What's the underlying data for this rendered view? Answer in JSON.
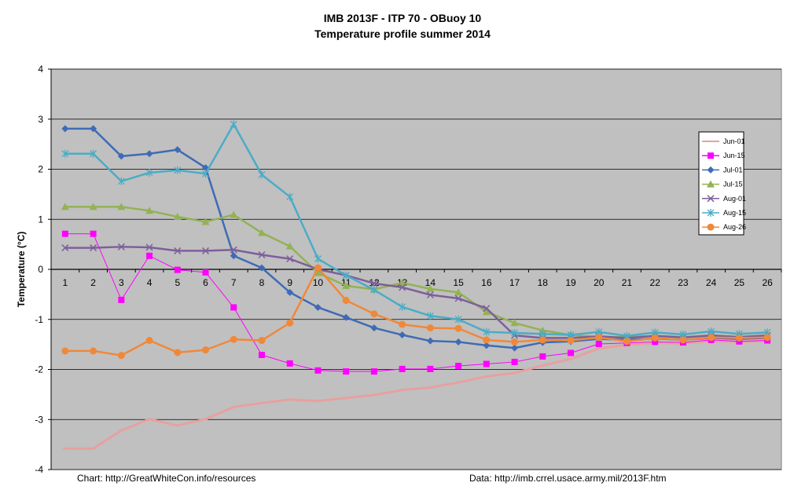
{
  "chart_data": {
    "type": "line",
    "title": "IMB 2013F  - ITP 70 - OBuoy 10",
    "subtitle": "Temperature profile summer 2014",
    "xlabel": "",
    "ylabel": "Temperature (°C)",
    "ylim": [
      -4,
      4
    ],
    "yticks": [
      -4,
      -3,
      -2,
      -1,
      0,
      1,
      2,
      3,
      4
    ],
    "x": [
      1,
      2,
      3,
      4,
      5,
      6,
      7,
      8,
      9,
      10,
      11,
      12,
      13,
      14,
      15,
      16,
      17,
      18,
      19,
      20,
      21,
      22,
      23,
      24,
      25,
      26
    ],
    "grid": "horizontal",
    "legend_position": "right",
    "series": [
      {
        "name": "Jun-01",
        "color": "#e8a0a0",
        "marker": "dash",
        "values": [
          -3.58,
          -3.58,
          -3.22,
          -2.99,
          -3.12,
          -2.99,
          -2.75,
          -2.67,
          -2.6,
          -2.63,
          -2.57,
          -2.51,
          -2.41,
          -2.36,
          -2.26,
          -2.14,
          -2.07,
          -1.92,
          -1.79,
          -1.58,
          -1.51,
          -1.47,
          -1.48,
          -1.43,
          -1.45,
          -1.43
        ]
      },
      {
        "name": "Jun-15",
        "color": "#ff00ff",
        "marker": "square",
        "values": [
          0.71,
          0.71,
          -0.61,
          0.27,
          -0.01,
          -0.06,
          -0.76,
          -1.71,
          -1.88,
          -2.02,
          -2.04,
          -2.04,
          -1.99,
          -1.99,
          -1.93,
          -1.89,
          -1.85,
          -1.74,
          -1.67,
          -1.49,
          -1.47,
          -1.45,
          -1.46,
          -1.41,
          -1.44,
          -1.42
        ]
      },
      {
        "name": "Jul-01",
        "color": "#3f6bb5",
        "marker": "diamond",
        "values": [
          2.81,
          2.81,
          2.26,
          2.31,
          2.39,
          2.03,
          0.27,
          0.03,
          -0.46,
          -0.76,
          -0.96,
          -1.17,
          -1.31,
          -1.43,
          -1.45,
          -1.52,
          -1.57,
          -1.46,
          -1.44,
          -1.39,
          -1.41,
          -1.38,
          -1.41,
          -1.37,
          -1.39,
          -1.37
        ]
      },
      {
        "name": "Jul-15",
        "color": "#93b254",
        "marker": "triangle",
        "values": [
          1.25,
          1.25,
          1.25,
          1.17,
          1.05,
          0.95,
          1.09,
          0.73,
          0.46,
          -0.07,
          -0.33,
          -0.4,
          -0.27,
          -0.39,
          -0.46,
          -0.85,
          -1.07,
          -1.22,
          -1.31,
          -1.35,
          -1.35,
          -1.33,
          -1.35,
          -1.33,
          -1.35,
          -1.33
        ]
      },
      {
        "name": "Aug-01",
        "color": "#7d5f9b",
        "marker": "x",
        "values": [
          0.43,
          0.43,
          0.45,
          0.44,
          0.37,
          0.37,
          0.39,
          0.29,
          0.21,
          0.0,
          -0.12,
          -0.28,
          -0.36,
          -0.51,
          -0.58,
          -0.78,
          -1.32,
          -1.37,
          -1.37,
          -1.34,
          -1.37,
          -1.33,
          -1.36,
          -1.32,
          -1.35,
          -1.32
        ]
      },
      {
        "name": "Aug-15",
        "color": "#4bacc6",
        "marker": "star",
        "values": [
          2.31,
          2.31,
          1.76,
          1.93,
          1.98,
          1.91,
          2.9,
          1.89,
          1.45,
          0.21,
          -0.12,
          -0.41,
          -0.75,
          -0.93,
          -1.0,
          -1.25,
          -1.27,
          -1.29,
          -1.31,
          -1.25,
          -1.33,
          -1.26,
          -1.3,
          -1.24,
          -1.29,
          -1.26
        ]
      },
      {
        "name": "Aug-26",
        "color": "#f0883a",
        "marker": "circle",
        "values": [
          -1.63,
          -1.63,
          -1.72,
          -1.42,
          -1.66,
          -1.61,
          -1.4,
          -1.42,
          -1.07,
          0.03,
          -0.62,
          -0.89,
          -1.1,
          -1.17,
          -1.18,
          -1.41,
          -1.45,
          -1.41,
          -1.42,
          -1.36,
          -1.44,
          -1.37,
          -1.41,
          -1.36,
          -1.37,
          -1.36
        ]
      }
    ]
  },
  "footer": {
    "left": "Chart: http://GreatWhiteCon.info/resources",
    "right": "Data:  http://imb.crrel.usace.army.mil/2013F.htm"
  },
  "colors": {
    "plot_background": "#c0c0c0",
    "gridline": "#000000"
  }
}
